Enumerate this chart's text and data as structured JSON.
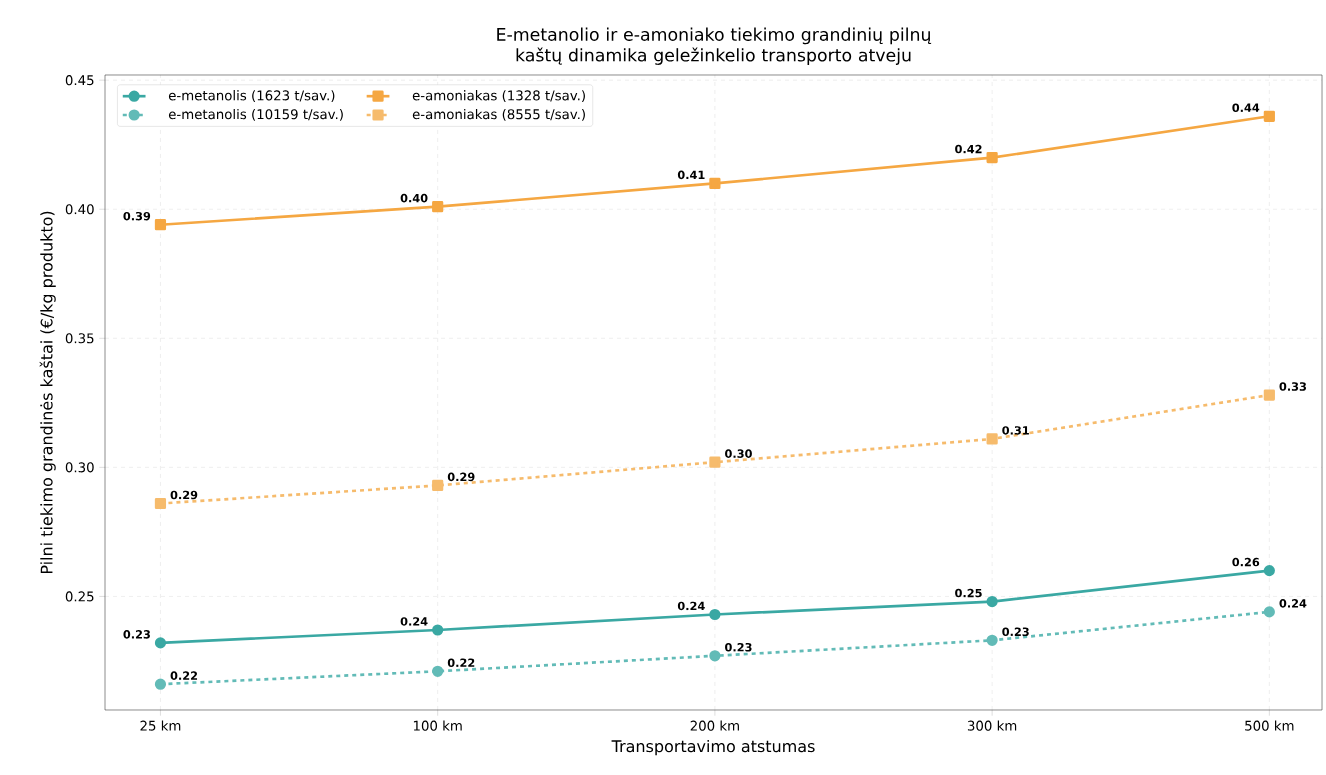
{
  "chart_data": {
    "type": "line",
    "title": "E-metanolio ir e-amoniako tiekimo grandinių pilnų kaštų dinamika geležinkelio transporto atveju",
    "xlabel": "Transportavimo atstumas",
    "ylabel": "Pilni tiekimo grandinės kaštai (€/kg produkto)",
    "categories": [
      "25 km",
      "100 km",
      "200 km",
      "300 km",
      "500 km"
    ],
    "series": [
      {
        "name": "e-metanolis (1623 t/sav.)",
        "color": "#3aa8a3",
        "line_style": "solid",
        "marker": "circle",
        "values": [
          0.232,
          0.237,
          0.243,
          0.248,
          0.26
        ],
        "value_labels": [
          "0.23",
          "0.24",
          "0.24",
          "0.25",
          "0.26"
        ]
      },
      {
        "name": "e-metanolis (10159 t/sav.)",
        "color": "#62bbb7",
        "line_style": "dashed",
        "marker": "circle",
        "values": [
          0.216,
          0.221,
          0.227,
          0.233,
          0.244
        ],
        "value_labels": [
          "0.22",
          "0.22",
          "0.23",
          "0.23",
          "0.24"
        ]
      },
      {
        "name": "e-amoniakas (1328 t/sav.)",
        "color": "#f5a742",
        "line_style": "solid",
        "marker": "square",
        "values": [
          0.394,
          0.401,
          0.41,
          0.42,
          0.436
        ],
        "value_labels": [
          "0.39",
          "0.40",
          "0.41",
          "0.42",
          "0.44"
        ]
      },
      {
        "name": "e-amoniakas (8555 t/sav.)",
        "color": "#f6bb6c",
        "line_style": "dashed",
        "marker": "square",
        "values": [
          0.286,
          0.293,
          0.302,
          0.311,
          0.328
        ],
        "value_labels": [
          "0.29",
          "0.29",
          "0.30",
          "0.31",
          "0.33"
        ]
      }
    ],
    "ylim": [
      0.206,
      0.452
    ],
    "yticks": [
      0.25,
      {
        "value": 0.3,
        "label": "0.30"
      },
      0.35,
      {
        "value": 0.4,
        "label": "0.40"
      },
      0.45
    ],
    "grid": true,
    "legend": "top left"
  }
}
